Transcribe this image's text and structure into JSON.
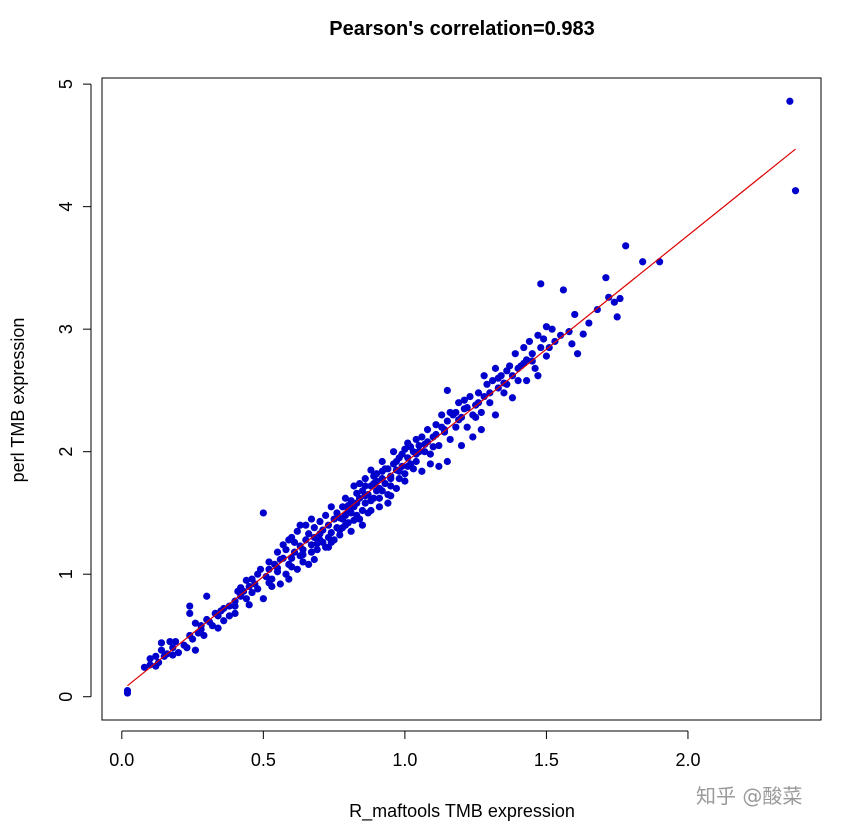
{
  "chart_data": {
    "type": "scatter",
    "title": "Pearson's correlation=0.983",
    "xlabel": "R_maftools TMB expression",
    "ylabel": "perl TMB expression",
    "xlim": [
      -0.07,
      2.47
    ],
    "ylim": [
      -0.19,
      5.05
    ],
    "x_ticks": [
      0.0,
      0.5,
      1.0,
      1.5,
      2.0
    ],
    "x_tick_labels": [
      "0.0",
      "0.5",
      "1.0",
      "1.5",
      "2.0"
    ],
    "y_ticks": [
      0,
      1,
      2,
      3,
      4,
      5
    ],
    "y_tick_labels": [
      "0",
      "1",
      "2",
      "3",
      "4",
      "5"
    ],
    "grid": false,
    "legend": "none",
    "point_color": "#0000cc",
    "line_color": "#dd0000",
    "fit_line": {
      "x": [
        0.02,
        2.38
      ],
      "y": [
        0.09,
        4.47
      ]
    },
    "points": [
      [
        0.02,
        0.05
      ],
      [
        0.02,
        0.03
      ],
      [
        0.08,
        0.24
      ],
      [
        0.1,
        0.26
      ],
      [
        0.1,
        0.31
      ],
      [
        0.12,
        0.33
      ],
      [
        0.12,
        0.25
      ],
      [
        0.13,
        0.28
      ],
      [
        0.14,
        0.38
      ],
      [
        0.14,
        0.44
      ],
      [
        0.15,
        0.33
      ],
      [
        0.16,
        0.35
      ],
      [
        0.17,
        0.45
      ],
      [
        0.18,
        0.4
      ],
      [
        0.18,
        0.34
      ],
      [
        0.19,
        0.45
      ],
      [
        0.23,
        0.4
      ],
      [
        0.24,
        0.5
      ],
      [
        0.24,
        0.68
      ],
      [
        0.24,
        0.74
      ],
      [
        0.25,
        0.47
      ],
      [
        0.26,
        0.38
      ],
      [
        0.27,
        0.52
      ],
      [
        0.28,
        0.55
      ],
      [
        0.28,
        0.58
      ],
      [
        0.3,
        0.63
      ],
      [
        0.3,
        0.82
      ],
      [
        0.31,
        0.61
      ],
      [
        0.33,
        0.68
      ],
      [
        0.34,
        0.56
      ],
      [
        0.35,
        0.7
      ],
      [
        0.36,
        0.72
      ],
      [
        0.38,
        0.74
      ],
      [
        0.4,
        0.78
      ],
      [
        0.4,
        0.68
      ],
      [
        0.42,
        0.82
      ],
      [
        0.42,
        0.89
      ],
      [
        0.43,
        0.86
      ],
      [
        0.44,
        0.8
      ],
      [
        0.44,
        0.95
      ],
      [
        0.45,
        0.75
      ],
      [
        0.45,
        0.9
      ],
      [
        0.46,
        0.85
      ],
      [
        0.47,
        0.92
      ],
      [
        0.48,
        1.0
      ],
      [
        0.48,
        0.88
      ],
      [
        0.5,
        0.8
      ],
      [
        0.5,
        1.5
      ],
      [
        0.51,
        0.98
      ],
      [
        0.52,
        1.04
      ],
      [
        0.52,
        0.93
      ],
      [
        0.53,
        0.96
      ],
      [
        0.54,
        1.08
      ],
      [
        0.55,
        1.05
      ],
      [
        0.55,
        1.18
      ],
      [
        0.56,
        0.92
      ],
      [
        0.57,
        1.13
      ],
      [
        0.58,
        1.0
      ],
      [
        0.58,
        1.2
      ],
      [
        0.59,
        1.08
      ],
      [
        0.59,
        1.28
      ],
      [
        0.6,
        1.13
      ],
      [
        0.6,
        1.3
      ],
      [
        0.61,
        1.18
      ],
      [
        0.62,
        1.35
      ],
      [
        0.62,
        1.04
      ],
      [
        0.63,
        1.23
      ],
      [
        0.63,
        1.4
      ],
      [
        0.64,
        1.2
      ],
      [
        0.64,
        1.1
      ],
      [
        0.65,
        1.28
      ],
      [
        0.65,
        1.4
      ],
      [
        0.66,
        1.33
      ],
      [
        0.67,
        1.18
      ],
      [
        0.67,
        1.45
      ],
      [
        0.68,
        1.3
      ],
      [
        0.68,
        1.38
      ],
      [
        0.69,
        1.25
      ],
      [
        0.7,
        1.43
      ],
      [
        0.7,
        1.33
      ],
      [
        0.71,
        1.36
      ],
      [
        0.72,
        1.22
      ],
      [
        0.72,
        1.48
      ],
      [
        0.73,
        1.3
      ],
      [
        0.73,
        1.4
      ],
      [
        0.74,
        1.55
      ],
      [
        0.75,
        1.28
      ],
      [
        0.75,
        1.45
      ],
      [
        0.76,
        1.38
      ],
      [
        0.76,
        1.5
      ],
      [
        0.77,
        1.36
      ],
      [
        0.78,
        1.45
      ],
      [
        0.78,
        1.55
      ],
      [
        0.79,
        1.48
      ],
      [
        0.79,
        1.62
      ],
      [
        0.8,
        1.42
      ],
      [
        0.8,
        1.52
      ],
      [
        0.81,
        1.35
      ],
      [
        0.81,
        1.6
      ],
      [
        0.82,
        1.55
      ],
      [
        0.82,
        1.72
      ],
      [
        0.83,
        1.48
      ],
      [
        0.84,
        1.62
      ],
      [
        0.84,
        1.74
      ],
      [
        0.85,
        1.52
      ],
      [
        0.85,
        1.68
      ],
      [
        0.86,
        1.58
      ],
      [
        0.86,
        1.78
      ],
      [
        0.87,
        1.65
      ],
      [
        0.87,
        1.5
      ],
      [
        0.88,
        1.72
      ],
      [
        0.88,
        1.85
      ],
      [
        0.89,
        1.62
      ],
      [
        0.89,
        1.74
      ],
      [
        0.9,
        1.68
      ],
      [
        0.9,
        1.82
      ],
      [
        0.91,
        1.7
      ],
      [
        0.91,
        1.55
      ],
      [
        0.92,
        1.78
      ],
      [
        0.92,
        1.92
      ],
      [
        0.93,
        1.74
      ],
      [
        0.94,
        1.65
      ],
      [
        0.94,
        1.86
      ],
      [
        0.95,
        1.8
      ],
      [
        0.95,
        1.72
      ],
      [
        0.96,
        1.9
      ],
      [
        0.96,
        2.0
      ],
      [
        0.97,
        1.85
      ],
      [
        0.98,
        1.78
      ],
      [
        0.98,
        1.95
      ],
      [
        0.99,
        1.88
      ],
      [
        1.0,
        2.02
      ],
      [
        1.0,
        1.82
      ],
      [
        1.01,
        1.95
      ],
      [
        1.01,
        2.07
      ],
      [
        1.02,
        1.9
      ],
      [
        1.03,
        2.0
      ],
      [
        1.04,
        2.1
      ],
      [
        1.04,
        1.92
      ],
      [
        1.05,
        2.05
      ],
      [
        1.06,
        2.12
      ],
      [
        1.07,
        2.0
      ],
      [
        1.08,
        2.18
      ],
      [
        1.09,
        1.98
      ],
      [
        1.1,
        2.12
      ],
      [
        1.11,
        2.22
      ],
      [
        1.12,
        2.05
      ],
      [
        1.13,
        2.3
      ],
      [
        1.14,
        2.18
      ],
      [
        1.15,
        2.25
      ],
      [
        1.15,
        2.5
      ],
      [
        1.16,
        2.1
      ],
      [
        1.17,
        2.3
      ],
      [
        1.18,
        2.2
      ],
      [
        1.19,
        2.4
      ],
      [
        1.2,
        2.28
      ],
      [
        1.21,
        2.35
      ],
      [
        1.22,
        2.2
      ],
      [
        1.23,
        2.45
      ],
      [
        1.24,
        2.3
      ],
      [
        1.25,
        2.38
      ],
      [
        1.26,
        2.48
      ],
      [
        1.27,
        2.32
      ],
      [
        1.28,
        2.45
      ],
      [
        1.28,
        2.62
      ],
      [
        1.29,
        2.55
      ],
      [
        1.3,
        2.4
      ],
      [
        1.31,
        2.58
      ],
      [
        1.32,
        2.68
      ],
      [
        1.33,
        2.52
      ],
      [
        1.34,
        2.62
      ],
      [
        1.35,
        2.48
      ],
      [
        1.36,
        2.55
      ],
      [
        1.37,
        2.7
      ],
      [
        1.38,
        2.62
      ],
      [
        1.39,
        2.8
      ],
      [
        1.4,
        2.58
      ],
      [
        1.41,
        2.7
      ],
      [
        1.42,
        2.85
      ],
      [
        1.43,
        2.75
      ],
      [
        1.44,
        2.9
      ],
      [
        1.45,
        2.8
      ],
      [
        1.46,
        2.68
      ],
      [
        1.47,
        2.95
      ],
      [
        1.48,
        3.37
      ],
      [
        1.48,
        2.85
      ],
      [
        1.49,
        2.92
      ],
      [
        1.5,
        3.02
      ],
      [
        1.5,
        2.78
      ],
      [
        1.51,
        2.85
      ],
      [
        1.52,
        3.0
      ],
      [
        1.53,
        2.9
      ],
      [
        1.55,
        2.95
      ],
      [
        1.56,
        3.32
      ],
      [
        1.58,
        2.98
      ],
      [
        1.59,
        2.88
      ],
      [
        1.6,
        3.12
      ],
      [
        1.61,
        2.8
      ],
      [
        1.63,
        2.96
      ],
      [
        1.65,
        3.05
      ],
      [
        1.68,
        3.16
      ],
      [
        1.71,
        3.42
      ],
      [
        1.72,
        3.26
      ],
      [
        1.74,
        3.22
      ],
      [
        1.75,
        3.1
      ],
      [
        1.76,
        3.25
      ],
      [
        1.78,
        3.68
      ],
      [
        1.84,
        3.55
      ],
      [
        1.9,
        3.55
      ],
      [
        2.36,
        4.86
      ],
      [
        2.38,
        4.13
      ],
      [
        0.55,
        1.02
      ],
      [
        0.59,
        0.96
      ],
      [
        0.63,
        1.15
      ],
      [
        0.66,
        1.08
      ],
      [
        0.69,
        1.2
      ],
      [
        0.71,
        1.26
      ],
      [
        0.74,
        1.34
      ],
      [
        0.77,
        1.46
      ],
      [
        0.79,
        1.4
      ],
      [
        0.81,
        1.5
      ],
      [
        0.83,
        1.58
      ],
      [
        0.84,
        1.45
      ],
      [
        0.86,
        1.64
      ],
      [
        0.88,
        1.6
      ],
      [
        0.9,
        1.76
      ],
      [
        0.92,
        1.68
      ],
      [
        0.93,
        1.86
      ],
      [
        0.95,
        1.78
      ],
      [
        0.97,
        1.92
      ],
      [
        0.99,
        1.98
      ],
      [
        1.02,
        2.04
      ],
      [
        1.05,
        2.0
      ],
      [
        1.08,
        2.08
      ],
      [
        1.1,
        2.04
      ],
      [
        1.13,
        2.2
      ],
      [
        1.16,
        2.32
      ],
      [
        1.19,
        2.26
      ],
      [
        1.22,
        2.36
      ],
      [
        1.25,
        2.28
      ],
      [
        1.3,
        2.48
      ],
      [
        1.35,
        2.56
      ],
      [
        1.4,
        2.68
      ],
      [
        1.45,
        2.74
      ],
      [
        0.36,
        0.62
      ],
      [
        0.4,
        0.74
      ],
      [
        0.46,
        0.96
      ],
      [
        0.52,
        1.1
      ],
      [
        0.57,
        1.24
      ],
      [
        0.61,
        1.26
      ],
      [
        0.68,
        1.12
      ],
      [
        0.73,
        1.22
      ],
      [
        0.78,
        1.38
      ],
      [
        0.82,
        1.44
      ],
      [
        0.85,
        1.4
      ],
      [
        0.88,
        1.52
      ],
      [
        0.91,
        1.62
      ],
      [
        0.94,
        1.58
      ],
      [
        0.97,
        1.7
      ],
      [
        1.0,
        1.76
      ],
      [
        1.03,
        1.86
      ],
      [
        1.06,
        1.84
      ],
      [
        1.09,
        1.9
      ],
      [
        1.12,
        1.88
      ],
      [
        1.15,
        1.92
      ],
      [
        1.2,
        2.05
      ],
      [
        1.24,
        2.12
      ],
      [
        1.27,
        2.18
      ],
      [
        1.32,
        2.3
      ],
      [
        1.38,
        2.44
      ],
      [
        1.43,
        2.58
      ],
      [
        1.47,
        2.62
      ],
      [
        0.2,
        0.36
      ],
      [
        0.22,
        0.42
      ],
      [
        0.26,
        0.6
      ],
      [
        0.29,
        0.5
      ],
      [
        0.32,
        0.58
      ],
      [
        0.34,
        0.66
      ],
      [
        0.38,
        0.66
      ],
      [
        0.41,
        0.86
      ],
      [
        0.49,
        1.04
      ],
      [
        0.53,
        0.9
      ],
      [
        0.56,
        1.12
      ],
      [
        0.6,
        1.06
      ],
      [
        0.64,
        1.16
      ],
      [
        0.67,
        1.24
      ],
      [
        0.7,
        1.28
      ],
      [
        0.74,
        1.26
      ],
      [
        0.77,
        1.32
      ],
      [
        0.8,
        1.56
      ],
      [
        0.83,
        1.66
      ],
      [
        0.86,
        1.72
      ],
      [
        0.89,
        1.8
      ],
      [
        0.92,
        1.84
      ],
      [
        0.95,
        1.64
      ],
      [
        0.98,
        1.84
      ],
      [
        1.01,
        1.88
      ],
      [
        1.04,
        1.98
      ],
      [
        1.07,
        2.06
      ],
      [
        1.11,
        2.14
      ],
      [
        1.14,
        2.16
      ],
      [
        1.18,
        2.32
      ],
      [
        1.21,
        2.42
      ],
      [
        1.26,
        2.4
      ],
      [
        1.33,
        2.6
      ],
      [
        1.36,
        2.66
      ],
      [
        1.42,
        2.72
      ]
    ],
    "watermark": "知乎 @酸菜"
  }
}
